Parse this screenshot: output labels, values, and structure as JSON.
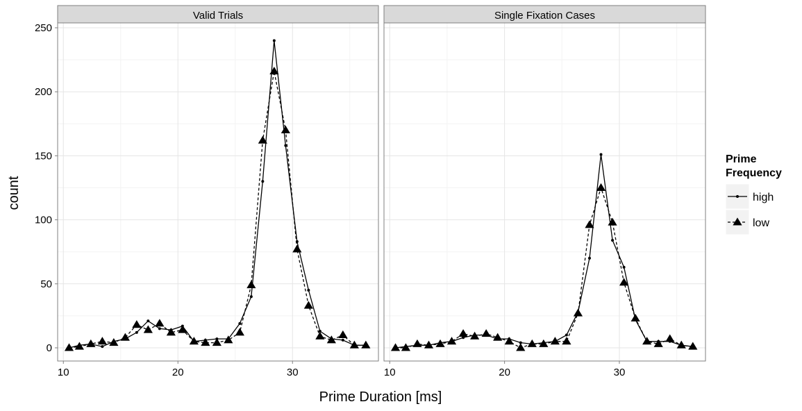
{
  "chart_data": {
    "type": "line",
    "xlabel": "Prime Duration [ms]",
    "ylabel": "count",
    "xlim": [
      9.5,
      37.5
    ],
    "ylim": [
      0,
      250
    ],
    "x_ticks": [
      10,
      20,
      30
    ],
    "y_ticks": [
      0,
      50,
      100,
      150,
      200,
      250
    ],
    "legend": {
      "title": "Prime Frequency",
      "placement": "right",
      "entries": [
        {
          "label": "high",
          "linestyle": "solid",
          "marker": "dot"
        },
        {
          "label": "low",
          "linestyle": "dashed",
          "marker": "triangle"
        }
      ]
    },
    "panels": [
      {
        "title": "Valid Trials",
        "series": [
          {
            "name": "high",
            "x": [
              10.5,
              11.4,
              12.4,
              13.4,
              14.4,
              15.4,
              16.4,
              17.4,
              18.4,
              19.4,
              20.4,
              21.4,
              22.4,
              23.4,
              24.4,
              25.4,
              26.4,
              27.4,
              28.4,
              29.4,
              30.4,
              31.4,
              32.4,
              33.4,
              34.4,
              35.4,
              36.4
            ],
            "y": [
              0,
              2,
              3,
              1,
              5,
              7,
              12,
              21,
              15,
              14,
              17,
              5,
              6,
              7,
              7,
              19,
              40,
              130,
              240,
              158,
              83,
              45,
              13,
              7,
              6,
              2,
              2
            ]
          },
          {
            "name": "low",
            "x": [
              10.5,
              11.4,
              12.4,
              13.4,
              14.4,
              15.4,
              16.4,
              17.4,
              18.4,
              19.4,
              20.4,
              21.4,
              22.4,
              23.4,
              24.4,
              25.4,
              26.4,
              27.4,
              28.4,
              29.4,
              30.4,
              31.4,
              32.4,
              33.4,
              34.4,
              35.4,
              36.4
            ],
            "y": [
              0,
              1,
              3,
              5,
              4,
              8,
              18,
              14,
              19,
              12,
              14,
              5,
              4,
              4,
              6,
              12,
              49,
              162,
              216,
              170,
              77,
              33,
              9,
              6,
              10,
              2,
              2
            ]
          }
        ]
      },
      {
        "title": "Single Fixation Cases",
        "series": [
          {
            "name": "high",
            "x": [
              10.5,
              11.4,
              12.4,
              13.4,
              14.4,
              15.4,
              16.4,
              17.4,
              18.4,
              19.4,
              20.4,
              21.4,
              22.4,
              23.4,
              24.4,
              25.4,
              26.4,
              27.4,
              28.4,
              29.4,
              30.4,
              31.4,
              32.4,
              33.4,
              34.4,
              35.4,
              36.4
            ],
            "y": [
              0,
              1,
              2,
              2,
              4,
              5,
              8,
              10,
              10,
              7,
              7,
              4,
              3,
              4,
              5,
              10,
              28,
              70,
              151,
              84,
              63,
              22,
              5,
              5,
              5,
              2,
              1
            ]
          },
          {
            "name": "low",
            "x": [
              10.5,
              11.4,
              12.4,
              13.4,
              14.4,
              15.4,
              16.4,
              17.4,
              18.4,
              19.4,
              20.4,
              21.4,
              22.4,
              23.4,
              24.4,
              25.4,
              26.4,
              27.4,
              28.4,
              29.4,
              30.4,
              31.4,
              32.4,
              33.4,
              34.4,
              35.4,
              36.4
            ],
            "y": [
              0,
              0,
              3,
              2,
              3,
              5,
              11,
              9,
              11,
              8,
              5,
              0,
              3,
              3,
              5,
              5,
              27,
              96,
              125,
              98,
              51,
              23,
              5,
              3,
              7,
              2,
              1
            ]
          }
        ]
      }
    ]
  }
}
